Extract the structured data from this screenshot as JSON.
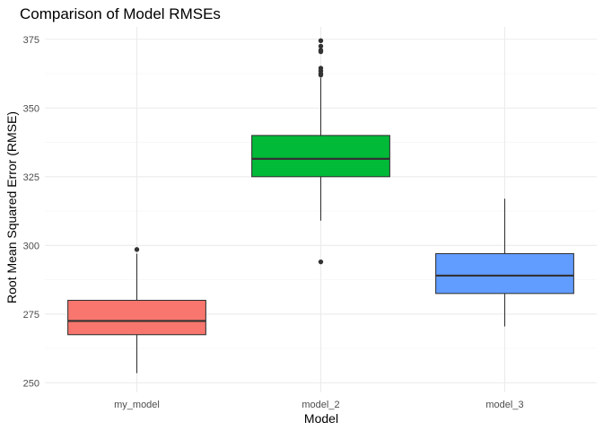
{
  "chart_data": {
    "type": "boxplot",
    "title": "Comparison of Model RMSEs",
    "xlabel": "Model",
    "ylabel": "Root Mean Squared Error (RMSE)",
    "ylim": [
      246.5,
      379.5
    ],
    "yticks": [
      250,
      275,
      300,
      325,
      350,
      375
    ],
    "grid": true,
    "legend": "none",
    "categories": [
      "my_model",
      "model_2",
      "model_3"
    ],
    "boxes": [
      {
        "category": "my_model",
        "color": "#F8766D",
        "whisker_low": 253.5,
        "q1": 267.5,
        "median": 272.5,
        "q3": 280,
        "whisker_high": 297,
        "outliers": [
          298.5
        ]
      },
      {
        "category": "model_2",
        "color": "#00BA38",
        "whisker_low": 309,
        "q1": 325,
        "median": 331.5,
        "q3": 340,
        "whisker_high": 361,
        "outliers": [
          374.5,
          372.5,
          371,
          370.5,
          364.5,
          363.5,
          362.5,
          362,
          294
        ]
      },
      {
        "category": "model_3",
        "color": "#619CFF",
        "whisker_low": 270.5,
        "q1": 282.5,
        "median": 289,
        "q3": 297,
        "whisker_high": 317,
        "outliers": []
      }
    ]
  }
}
